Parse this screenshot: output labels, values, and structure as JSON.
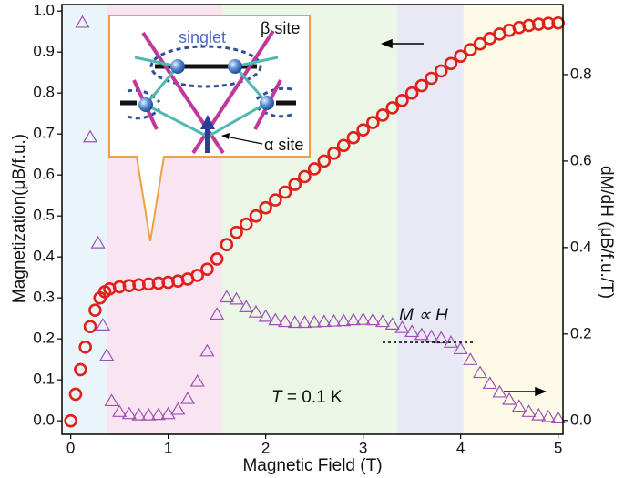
{
  "chart_data": {
    "type": "scatter",
    "x_label": "Magnetic Field (T)",
    "y_label": "Magnetization(μB/f.u.)",
    "y2_label": "dM/dH  (μB/f.u./T)",
    "xlim": [
      -0.09,
      5.05
    ],
    "ylim": [
      -0.033,
      1.016
    ],
    "y2lim": [
      -0.032,
      0.962
    ],
    "xticks": [
      0,
      1,
      2,
      3,
      4,
      5
    ],
    "yticks": [
      {
        "value": 0,
        "label": "0.0"
      },
      {
        "value": 0.1,
        "label": "0.1"
      },
      {
        "value": 0.2,
        "label": "0.2"
      },
      {
        "value": 0.3,
        "label": "0.3"
      },
      {
        "value": 0.4,
        "label": "0.4"
      },
      {
        "value": 0.5,
        "label": "0.5"
      },
      {
        "value": 0.6,
        "label": "0.6"
      },
      {
        "value": 0.7,
        "label": "0.7"
      },
      {
        "value": 0.8,
        "label": "0.8"
      },
      {
        "value": 0.9,
        "label": "0.9"
      },
      {
        "value": 1,
        "label": "1.0"
      }
    ],
    "y2ticks": [
      {
        "value": 0,
        "label": "0.0"
      },
      {
        "value": 0.2,
        "label": "0.2"
      },
      {
        "value": 0.4,
        "label": "0.4"
      },
      {
        "value": 0.6,
        "label": "0.6"
      },
      {
        "value": 0.8,
        "label": "0.8"
      }
    ],
    "regions": [
      {
        "from": -0.09,
        "to": 0.37,
        "color": "#e9f4fb"
      },
      {
        "from": 0.37,
        "to": 1.55,
        "color": "#f9e4f1"
      },
      {
        "from": 1.55,
        "to": 3.35,
        "color": "#eaf6e6"
      },
      {
        "from": 3.35,
        "to": 4.03,
        "color": "#e9e9f6"
      },
      {
        "from": 4.03,
        "to": 5.05,
        "color": "#fdfbe7"
      }
    ],
    "series": [
      {
        "marker": "circle",
        "color": "#e0201b",
        "x": [
          0,
          0.05,
          0.1,
          0.15,
          0.2,
          0.25,
          0.3,
          0.35,
          0.4,
          0.5,
          0.6,
          0.7,
          0.8,
          0.9,
          1.0,
          1.1,
          1.2,
          1.3,
          1.4,
          1.5,
          1.6,
          1.7,
          1.8,
          1.9,
          2.0,
          2.1,
          2.2,
          2.3,
          2.4,
          2.5,
          2.6,
          2.7,
          2.8,
          2.9,
          3.0,
          3.1,
          3.2,
          3.3,
          3.4,
          3.5,
          3.6,
          3.7,
          3.8,
          3.9,
          4.0,
          4.1,
          4.2,
          4.3,
          4.4,
          4.5,
          4.6,
          4.7,
          4.8,
          4.9,
          5.0
        ],
        "values": [
          0,
          0.065,
          0.125,
          0.18,
          0.23,
          0.27,
          0.3,
          0.315,
          0.322,
          0.327,
          0.33,
          0.332,
          0.334,
          0.336,
          0.338,
          0.341,
          0.346,
          0.355,
          0.37,
          0.395,
          0.43,
          0.46,
          0.48,
          0.5,
          0.52,
          0.539,
          0.558,
          0.577,
          0.596,
          0.615,
          0.634,
          0.653,
          0.672,
          0.691,
          0.71,
          0.728,
          0.746,
          0.764,
          0.782,
          0.8,
          0.818,
          0.836,
          0.854,
          0.872,
          0.89,
          0.906,
          0.92,
          0.933,
          0.944,
          0.953,
          0.96,
          0.965,
          0.968,
          0.97,
          0.971
        ]
      },
      {
        "marker": "triangle",
        "color": "#a050b4",
        "axis": "y2",
        "x": [
          0.12,
          0.2,
          0.28,
          0.33,
          0.37,
          0.42,
          0.5,
          0.6,
          0.7,
          0.8,
          0.9,
          1.0,
          1.1,
          1.2,
          1.3,
          1.4,
          1.5,
          1.6,
          1.7,
          1.8,
          1.9,
          2.0,
          2.1,
          2.2,
          2.3,
          2.4,
          2.5,
          2.6,
          2.7,
          2.8,
          2.9,
          3.0,
          3.1,
          3.2,
          3.3,
          3.4,
          3.5,
          3.6,
          3.7,
          3.8,
          3.9,
          4.0,
          4.1,
          4.2,
          4.3,
          4.4,
          4.5,
          4.6,
          4.7,
          4.8,
          4.9,
          5.0
        ],
        "values": [
          0.92,
          0.655,
          0.41,
          0.22,
          0.15,
          0.045,
          0.02,
          0.015,
          0.012,
          0.012,
          0.013,
          0.015,
          0.025,
          0.05,
          0.09,
          0.16,
          0.245,
          0.285,
          0.28,
          0.262,
          0.25,
          0.24,
          0.232,
          0.228,
          0.226,
          0.226,
          0.227,
          0.228,
          0.229,
          0.23,
          0.232,
          0.233,
          0.232,
          0.228,
          0.222,
          0.214,
          0.205,
          0.198,
          0.193,
          0.19,
          0.18,
          0.165,
          0.14,
          0.11,
          0.085,
          0.065,
          0.048,
          0.032,
          0.02,
          0.012,
          0.008,
          0.005
        ]
      }
    ],
    "annotations": {
      "proportional": "M ∝ H",
      "temperature_symbol": "T",
      "temperature_value": "= 0.1 K"
    },
    "inset": {
      "singlet": "singlet",
      "beta_site": "β site",
      "alpha_site": "α site"
    }
  }
}
